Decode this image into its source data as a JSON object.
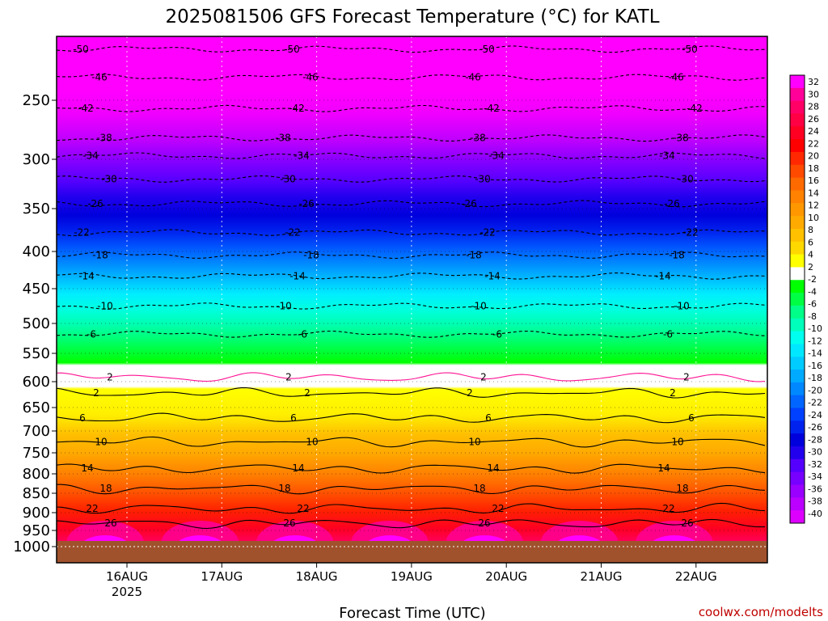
{
  "chart_data": {
    "type": "contour",
    "title": "2025081506 GFS Forecast Temperature (°C) for KATL",
    "xlabel": "Forecast Time (UTC)",
    "ylabel": "",
    "credit": "coolwx.com/modelts",
    "x_ticks": [
      {
        "label": "16AUG",
        "sublabel": "2025",
        "value": "2025-08-16"
      },
      {
        "label": "17AUG",
        "sublabel": "",
        "value": "2025-08-17"
      },
      {
        "label": "18AUG",
        "sublabel": "",
        "value": "2025-08-18"
      },
      {
        "label": "19AUG",
        "sublabel": "",
        "value": "2025-08-19"
      },
      {
        "label": "20AUG",
        "sublabel": "",
        "value": "2025-08-20"
      },
      {
        "label": "21AUG",
        "sublabel": "",
        "value": "2025-08-21"
      },
      {
        "label": "22AUG",
        "sublabel": "",
        "value": "2025-08-22"
      }
    ],
    "xlim": [
      "2025-08-15 06Z",
      "2025-08-22 18Z"
    ],
    "y_axis": "pressure (hPa), inverted",
    "y_ticks": [
      250,
      300,
      350,
      400,
      450,
      500,
      550,
      600,
      650,
      700,
      750,
      800,
      850,
      900,
      950,
      1000
    ],
    "ylim": [
      200,
      1000
    ],
    "colorbar_labels": [
      32,
      30,
      28,
      26,
      24,
      22,
      20,
      18,
      16,
      14,
      12,
      10,
      8,
      6,
      4,
      2,
      -2,
      -4,
      -6,
      -8,
      -10,
      -12,
      -14,
      -16,
      -18,
      -20,
      -22,
      -24,
      -26,
      -28,
      -30,
      -32,
      -34,
      -36,
      -38,
      -40
    ],
    "colorbar_colors": [
      "#ff00ff",
      "#ff0099",
      "#ff0066",
      "#ff0044",
      "#ff0022",
      "#ff0000",
      "#ff2800",
      "#ff4a00",
      "#ff6a00",
      "#ff8200",
      "#ff9800",
      "#ffaa00",
      "#ffc000",
      "#ffd800",
      "#ffff00",
      "#ffffff",
      "#00ff00",
      "#00ff44",
      "#00ff88",
      "#00ffbb",
      "#00ffee",
      "#00e8ff",
      "#00ccff",
      "#00aaff",
      "#0088ff",
      "#0066ff",
      "#0040ff",
      "#0022ee",
      "#0000dd",
      "#2200ee",
      "#5500ff",
      "#7700ff",
      "#9900ff",
      "#bb00ff",
      "#dd00ff"
    ],
    "contour_levels": [
      {
        "value": -50,
        "pressure": 210,
        "style": "dashed"
      },
      {
        "value": -46,
        "pressure": 232,
        "style": "dashed"
      },
      {
        "value": -42,
        "pressure": 257,
        "style": "dashed"
      },
      {
        "value": -38,
        "pressure": 282,
        "style": "dashed"
      },
      {
        "value": -34,
        "pressure": 297,
        "style": "dashed"
      },
      {
        "value": -30,
        "pressure": 320,
        "style": "dashed"
      },
      {
        "value": -26,
        "pressure": 345,
        "style": "dashed"
      },
      {
        "value": -22,
        "pressure": 378,
        "style": "dashed"
      },
      {
        "value": -18,
        "pressure": 405,
        "style": "dashed"
      },
      {
        "value": -14,
        "pressure": 433,
        "style": "dashed"
      },
      {
        "value": -10,
        "pressure": 475,
        "style": "dashed"
      },
      {
        "value": -6,
        "pressure": 518,
        "style": "dashed"
      },
      {
        "value": 2,
        "pressure": 592,
        "style": "freezing"
      },
      {
        "value": 2,
        "pressure": 622,
        "style": "solid"
      },
      {
        "value": 6,
        "pressure": 672,
        "style": "solid"
      },
      {
        "value": 10,
        "pressure": 725,
        "style": "solid"
      },
      {
        "value": 14,
        "pressure": 787,
        "style": "solid"
      },
      {
        "value": 18,
        "pressure": 838,
        "style": "solid"
      },
      {
        "value": 22,
        "pressure": 890,
        "style": "solid"
      },
      {
        "value": 26,
        "pressure": 930,
        "style": "solid"
      }
    ],
    "ground_below_hPa": 975,
    "grid": true,
    "legend": "colorbar right"
  }
}
